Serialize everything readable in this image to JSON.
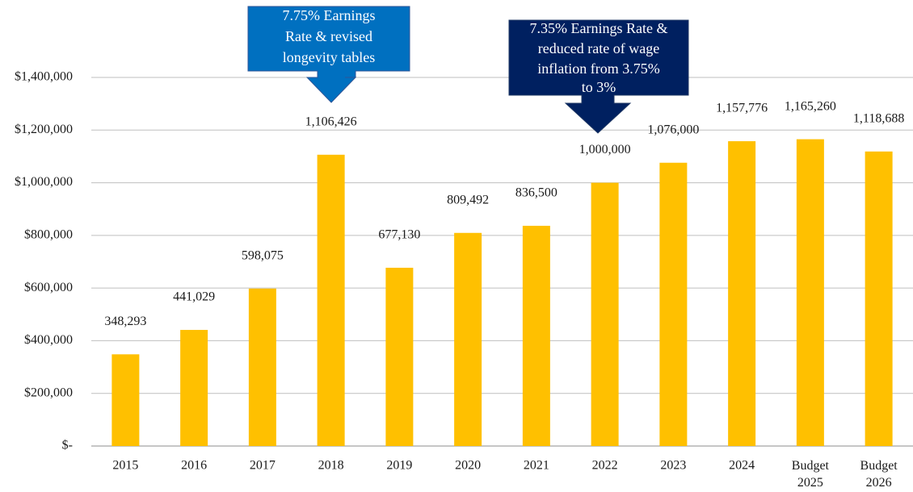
{
  "chart_data": {
    "type": "bar",
    "categories": [
      "2015",
      "2016",
      "2017",
      "2018",
      "2019",
      "2020",
      "2021",
      "2022",
      "2023",
      "2024",
      "Budget 2025",
      "Budget 2026"
    ],
    "values": [
      348293,
      441029,
      598075,
      1106426,
      677130,
      809492,
      836500,
      1000000,
      1076000,
      1157776,
      1165260,
      1118688
    ],
    "value_labels": [
      "348,293",
      "441,029",
      "598,075",
      "1,106,426",
      "677,130",
      "809,492",
      "836,500",
      "1,000,000",
      "1,076,000",
      "1,157,776",
      "1,165,260",
      "1,118,688"
    ],
    "color": "#ffc000",
    "ylim": [
      0,
      1400000
    ],
    "yticks": [
      {
        "value": 0,
        "label": "$-"
      },
      {
        "value": 200000,
        "label": "$200,000"
      },
      {
        "value": 400000,
        "label": "$400,000"
      },
      {
        "value": 600000,
        "label": "$600,000"
      },
      {
        "value": 800000,
        "label": "$800,000"
      },
      {
        "value": 1000000,
        "label": "$1,000,000"
      },
      {
        "value": 1200000,
        "label": "$1,200,000"
      },
      {
        "value": 1400000,
        "label": "$1,400,000"
      }
    ],
    "grid": true,
    "annotations": [
      {
        "lines": [
          "7.75% Earnings",
          "Rate & revised",
          "longevity tables"
        ]
      },
      {
        "lines": [
          "7.35% Earnings Rate &",
          "reduced rate of wage",
          "inflation from 3.75%",
          "to 3%"
        ]
      }
    ]
  }
}
